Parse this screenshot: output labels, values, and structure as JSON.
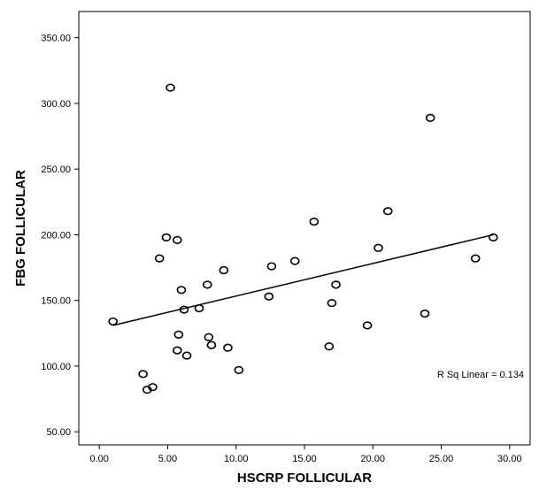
{
  "chart_data": {
    "type": "scatter",
    "xlabel": "HSCRP FOLLICULAR",
    "ylabel": "FBG FOLLICULAR",
    "xlim": [
      -1.5,
      31.5
    ],
    "ylim": [
      40,
      370
    ],
    "xticks": [
      0,
      5,
      10,
      15,
      20,
      25,
      30
    ],
    "yticks": [
      50,
      100,
      150,
      200,
      250,
      300,
      350
    ],
    "xtick_labels": [
      "0.00",
      "5.00",
      "10.00",
      "15.00",
      "20.00",
      "25.00",
      "30.00"
    ],
    "ytick_labels": [
      "50.00",
      "100.00",
      "150.00",
      "200.00",
      "250.00",
      "300.00",
      "350.00"
    ],
    "grid": false,
    "points": [
      {
        "x": 1.0,
        "y": 134
      },
      {
        "x": 3.2,
        "y": 94
      },
      {
        "x": 3.5,
        "y": 82
      },
      {
        "x": 3.9,
        "y": 84
      },
      {
        "x": 4.4,
        "y": 182
      },
      {
        "x": 4.9,
        "y": 198
      },
      {
        "x": 5.2,
        "y": 312
      },
      {
        "x": 5.7,
        "y": 196
      },
      {
        "x": 5.7,
        "y": 112
      },
      {
        "x": 5.8,
        "y": 124
      },
      {
        "x": 6.0,
        "y": 158
      },
      {
        "x": 6.2,
        "y": 143
      },
      {
        "x": 6.4,
        "y": 108
      },
      {
        "x": 7.3,
        "y": 144
      },
      {
        "x": 7.9,
        "y": 162
      },
      {
        "x": 8.0,
        "y": 122
      },
      {
        "x": 8.2,
        "y": 116
      },
      {
        "x": 9.1,
        "y": 173
      },
      {
        "x": 9.4,
        "y": 114
      },
      {
        "x": 10.2,
        "y": 97
      },
      {
        "x": 12.4,
        "y": 153
      },
      {
        "x": 12.6,
        "y": 176
      },
      {
        "x": 14.3,
        "y": 180
      },
      {
        "x": 15.7,
        "y": 210
      },
      {
        "x": 16.8,
        "y": 115
      },
      {
        "x": 17.0,
        "y": 148
      },
      {
        "x": 17.3,
        "y": 162
      },
      {
        "x": 19.6,
        "y": 131
      },
      {
        "x": 20.4,
        "y": 190
      },
      {
        "x": 21.1,
        "y": 218
      },
      {
        "x": 23.8,
        "y": 140
      },
      {
        "x": 24.2,
        "y": 289
      },
      {
        "x": 27.5,
        "y": 182
      },
      {
        "x": 28.8,
        "y": 198
      }
    ],
    "fit_line": {
      "x": [
        1.0,
        28.8
      ],
      "y": [
        131,
        200
      ]
    },
    "annotation": "R Sq Linear = 0.134",
    "annotation_position": "bottom-right"
  }
}
